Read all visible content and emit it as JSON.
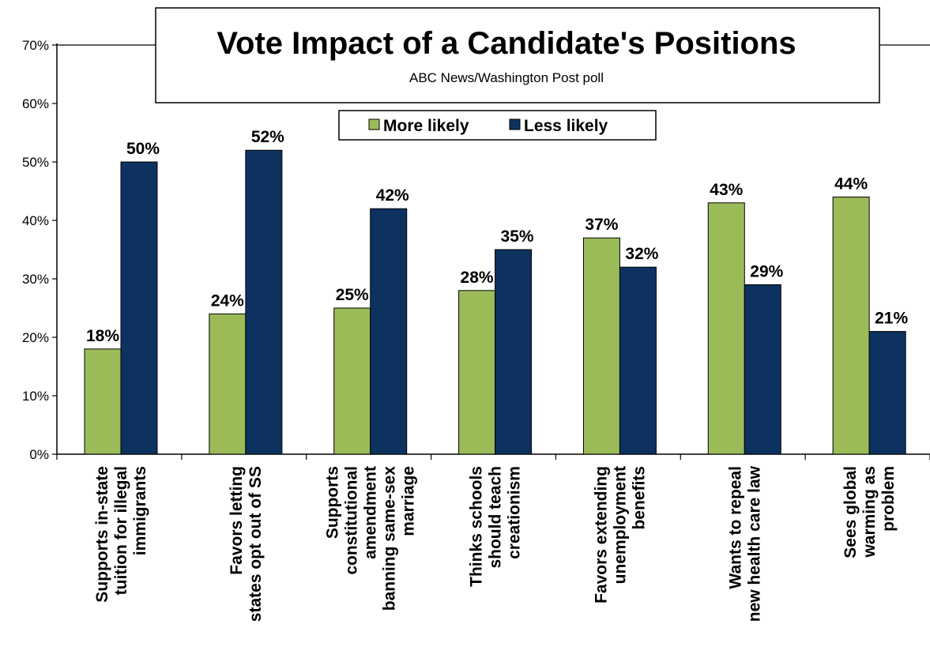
{
  "chart_data": {
    "type": "bar",
    "title": "Vote Impact of a Candidate's Positions",
    "subtitle": "ABC News/Washington  Post poll",
    "xlabel": "",
    "ylabel": "",
    "ylim": [
      0,
      70
    ],
    "yticks": [
      "0%",
      "10%",
      "20%",
      "30%",
      "40%",
      "50%",
      "60%",
      "70%"
    ],
    "grid": false,
    "legend_position": "top-center",
    "categories": [
      [
        "Supports in-state",
        "tuition for illegal",
        "immigrants"
      ],
      [
        "Favors letting",
        "states opt out of SS"
      ],
      [
        "Supports",
        "constitutional",
        "amendment",
        "banning same-sex",
        "marriage"
      ],
      [
        "Thinks schools",
        "should teach",
        "creationism"
      ],
      [
        "Favors extending",
        "unemployment",
        "benefits"
      ],
      [
        "Wants to repeal",
        "new health care law"
      ],
      [
        "Sees global",
        "warming as",
        "problem"
      ]
    ],
    "series": [
      {
        "name": "More likely",
        "color": "#9BBB59",
        "values": [
          18,
          24,
          25,
          28,
          37,
          43,
          44
        ],
        "labels": [
          "18%",
          "24%",
          "25%",
          "28%",
          "37%",
          "43%",
          "44%"
        ]
      },
      {
        "name": "Less likely",
        "color": "#0D3260",
        "values": [
          50,
          52,
          42,
          35,
          32,
          29,
          21
        ],
        "labels": [
          "50%",
          "52%",
          "42%",
          "35%",
          "32%",
          "29%",
          "21%"
        ]
      }
    ]
  }
}
